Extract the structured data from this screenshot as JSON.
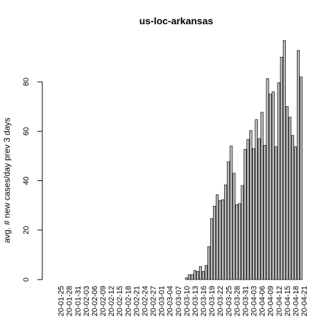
{
  "chart_data": {
    "type": "bar",
    "title": "us-loc-arkansas",
    "xlabel": "",
    "ylabel": "avg. # new cases/day prev  3  days",
    "ylim": [
      0,
      98
    ],
    "y_ticks": [
      0,
      20,
      40,
      60,
      80
    ],
    "grid": false,
    "legend": "none",
    "bar_color": "#bebebe",
    "x_tick_labels": [
      "20-01-25",
      "20-01-28",
      "20-01-31",
      "20-02-03",
      "20-02-06",
      "20-02-09",
      "20-02-12",
      "20-02-15",
      "20-02-18",
      "20-02-21",
      "20-02-24",
      "20-02-27",
      "20-03-01",
      "20-03-04",
      "20-03-07",
      "20-03-10",
      "20-03-13",
      "20-03-16",
      "20-03-19",
      "20-03-22",
      "20-03-25",
      "20-03-28",
      "20-03-31",
      "20-04-03",
      "20-04-06",
      "20-04-09",
      "20-04-12",
      "20-04-15",
      "20-04-18",
      "20-04-21"
    ],
    "start_date": "2020-01-22",
    "values": [
      0,
      0,
      0,
      0,
      0,
      0,
      0,
      0,
      0,
      0,
      0,
      0,
      0,
      0,
      0,
      0,
      0,
      0,
      0,
      0,
      0,
      0,
      0,
      0,
      0,
      0,
      0,
      0,
      0,
      0,
      0,
      0,
      0,
      0,
      0,
      0,
      0,
      0,
      0,
      0,
      0,
      0,
      0,
      0,
      0,
      0,
      0,
      0,
      0.7,
      2,
      2,
      3.7,
      3.3,
      5.3,
      3.3,
      5.7,
      13.3,
      24.7,
      29.7,
      34.3,
      32,
      32.3,
      38.3,
      47.7,
      54,
      43,
      30.3,
      30.7,
      38,
      52.7,
      56.7,
      60.3,
      53,
      64.7,
      57,
      67.7,
      54.3,
      81.3,
      75,
      76,
      53.7,
      79.7,
      90,
      96.7,
      70,
      65.7,
      58.3,
      53.7,
      92.7,
      82
    ]
  }
}
